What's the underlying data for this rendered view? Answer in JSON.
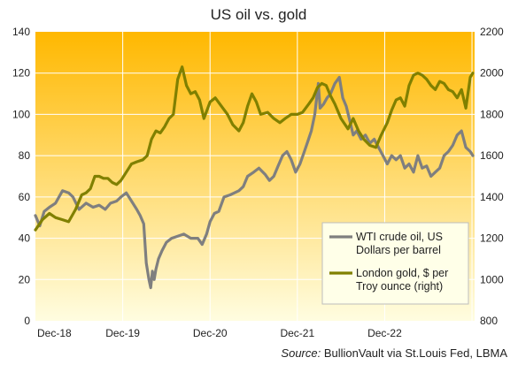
{
  "chart_data": {
    "type": "line",
    "title": "US oil vs. gold",
    "x_tick_labels": [
      "Dec-18",
      "Dec-19",
      "Dec-20",
      "Dec-21",
      "Dec-22"
    ],
    "x_tick_years": [
      2018.92,
      2019.92,
      2020.92,
      2021.92,
      2022.92
    ],
    "xlim": [
      2018.92,
      2023.95
    ],
    "y_left": {
      "ylim": [
        0,
        140
      ],
      "ticks": [
        0,
        20,
        40,
        60,
        80,
        100,
        120,
        140
      ]
    },
    "y_right": {
      "ylim": [
        800,
        2200
      ],
      "ticks": [
        800,
        1000,
        1200,
        1400,
        1600,
        1800,
        2000,
        2200
      ]
    },
    "series": [
      {
        "name": "WTI crude oil, US Dollars per barrel",
        "name_lines": [
          "WTI crude oil, US",
          "Dollars per barrel"
        ],
        "axis": "left",
        "color": "#7f7f7f",
        "x": [
          2018.92,
          2018.97,
          2019.02,
          2019.08,
          2019.15,
          2019.23,
          2019.3,
          2019.35,
          2019.42,
          2019.5,
          2019.58,
          2019.65,
          2019.72,
          2019.78,
          2019.85,
          2019.9,
          2019.96,
          2020.02,
          2020.08,
          2020.12,
          2020.16,
          2020.19,
          2020.22,
          2020.24,
          2020.26,
          2020.28,
          2020.3,
          2020.33,
          2020.37,
          2020.42,
          2020.48,
          2020.55,
          2020.62,
          2020.7,
          2020.78,
          2020.83,
          2020.88,
          2020.92,
          2020.97,
          2021.02,
          2021.08,
          2021.15,
          2021.2,
          2021.25,
          2021.3,
          2021.35,
          2021.42,
          2021.48,
          2021.55,
          2021.6,
          2021.65,
          2021.7,
          2021.75,
          2021.8,
          2021.85,
          2021.9,
          2021.95,
          2022.0,
          2022.04,
          2022.08,
          2022.12,
          2022.16,
          2022.18,
          2022.22,
          2022.26,
          2022.3,
          2022.35,
          2022.4,
          2022.44,
          2022.48,
          2022.52,
          2022.56,
          2022.6,
          2022.65,
          2022.7,
          2022.75,
          2022.8,
          2022.85,
          2022.9,
          2022.95,
          2023.0,
          2023.05,
          2023.1,
          2023.15,
          2023.2,
          2023.25,
          2023.3,
          2023.35,
          2023.4,
          2023.45,
          2023.5,
          2023.55,
          2023.6,
          2023.65,
          2023.7,
          2023.75,
          2023.8,
          2023.85,
          2023.9,
          2023.93
        ],
        "values": [
          51,
          46,
          53,
          55,
          57,
          63,
          62,
          60,
          54,
          57,
          55,
          56,
          54,
          57,
          58,
          60,
          62,
          58,
          54,
          51,
          47,
          28,
          20,
          16,
          24,
          20,
          25,
          30,
          34,
          38,
          40,
          41,
          42,
          40,
          40,
          37,
          42,
          48,
          52,
          53,
          60,
          61,
          62,
          63,
          65,
          70,
          72,
          74,
          71,
          68,
          70,
          75,
          80,
          82,
          78,
          72,
          76,
          82,
          87,
          92,
          100,
          115,
          103,
          105,
          108,
          110,
          115,
          118,
          108,
          104,
          97,
          90,
          92,
          88,
          90,
          86,
          88,
          84,
          80,
          76,
          80,
          78,
          80,
          74,
          76,
          72,
          80,
          74,
          75,
          70,
          72,
          74,
          80,
          82,
          85,
          90,
          92,
          84,
          82,
          80
        ]
      },
      {
        "name": "London gold, $ per Troy ounce (right)",
        "name_lines": [
          "London gold, $ per",
          "Troy ounce (right)"
        ],
        "axis": "right",
        "color": "#808000",
        "x": [
          2018.92,
          2019.0,
          2019.08,
          2019.15,
          2019.23,
          2019.3,
          2019.38,
          2019.45,
          2019.5,
          2019.55,
          2019.6,
          2019.65,
          2019.7,
          2019.75,
          2019.8,
          2019.85,
          2019.9,
          2019.96,
          2020.02,
          2020.08,
          2020.15,
          2020.2,
          2020.25,
          2020.3,
          2020.35,
          2020.4,
          2020.45,
          2020.5,
          2020.55,
          2020.6,
          2020.65,
          2020.7,
          2020.75,
          2020.8,
          2020.85,
          2020.92,
          2020.98,
          2021.05,
          2021.12,
          2021.18,
          2021.25,
          2021.3,
          2021.35,
          2021.4,
          2021.45,
          2021.5,
          2021.58,
          2021.65,
          2021.72,
          2021.78,
          2021.85,
          2021.92,
          2021.98,
          2022.05,
          2022.1,
          2022.15,
          2022.2,
          2022.25,
          2022.3,
          2022.35,
          2022.42,
          2022.5,
          2022.56,
          2022.62,
          2022.68,
          2022.75,
          2022.82,
          2022.88,
          2022.95,
          2023.0,
          2023.05,
          2023.1,
          2023.15,
          2023.2,
          2023.25,
          2023.3,
          2023.35,
          2023.4,
          2023.45,
          2023.5,
          2023.55,
          2023.6,
          2023.65,
          2023.7,
          2023.75,
          2023.8,
          2023.85,
          2023.9,
          2023.93
        ],
        "values": [
          1240,
          1290,
          1320,
          1300,
          1290,
          1280,
          1340,
          1410,
          1420,
          1440,
          1500,
          1500,
          1490,
          1490,
          1470,
          1460,
          1480,
          1520,
          1560,
          1570,
          1580,
          1600,
          1680,
          1720,
          1710,
          1740,
          1780,
          1800,
          1970,
          2030,
          1940,
          1900,
          1910,
          1870,
          1780,
          1860,
          1880,
          1840,
          1800,
          1750,
          1720,
          1760,
          1840,
          1900,
          1860,
          1800,
          1810,
          1780,
          1760,
          1780,
          1800,
          1800,
          1810,
          1850,
          1880,
          1930,
          1950,
          1940,
          1890,
          1850,
          1780,
          1730,
          1780,
          1720,
          1680,
          1650,
          1640,
          1700,
          1760,
          1820,
          1870,
          1880,
          1840,
          1940,
          1990,
          2000,
          1990,
          1970,
          1940,
          1920,
          1960,
          1950,
          1920,
          1910,
          1880,
          1920,
          1830,
          1980,
          2000
        ]
      }
    ],
    "source_label": "Source:",
    "source_text": " BullionVault via St.Louis Fed, LBMA",
    "colors": {
      "plot_top": "#ffb800",
      "plot_bottom": "#fffde0",
      "grid": "#ffffff"
    }
  }
}
